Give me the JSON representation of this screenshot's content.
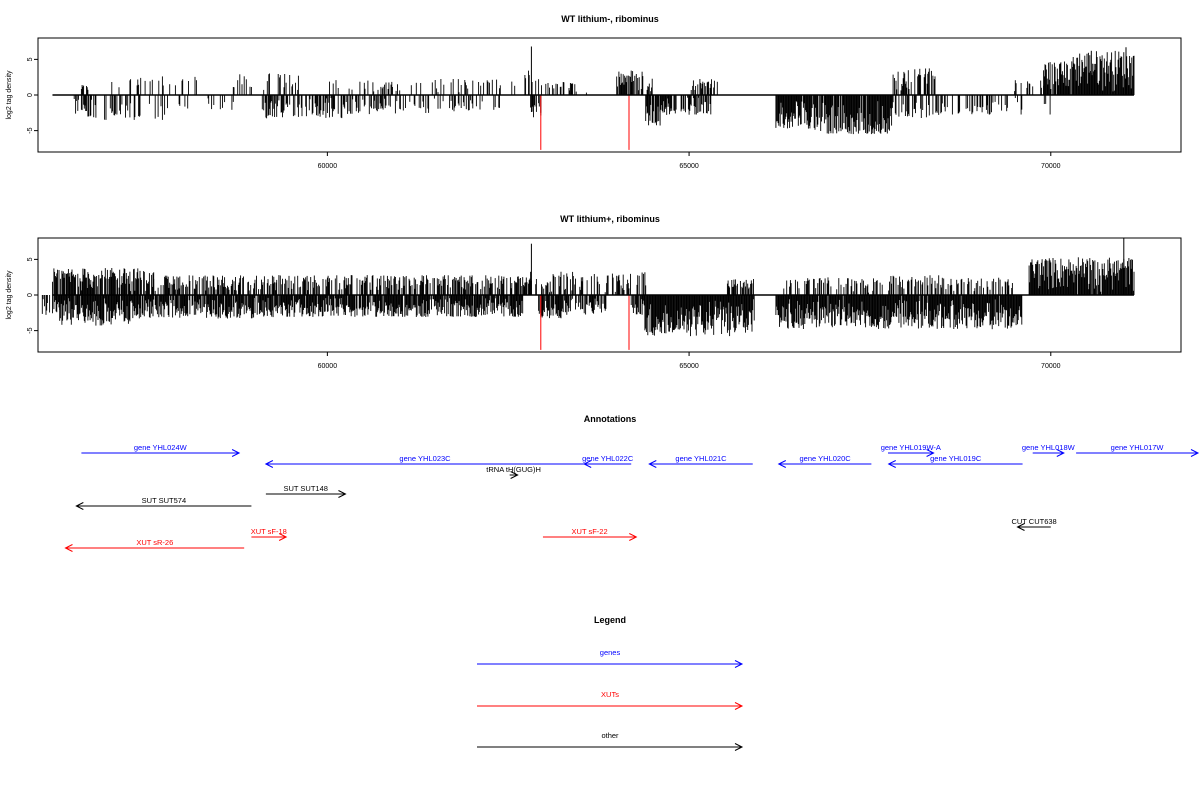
{
  "colors": {
    "gene": "#0000ff",
    "xut": "#ff0000",
    "other": "#000000",
    "tick_marker": "#ff0000"
  },
  "chart_data": [
    {
      "type": "bar",
      "title": "WT lithium-, ribominus",
      "ylabel": "log2 tag density",
      "xlim": [
        56000,
        71800
      ],
      "ylim": [
        -8,
        8
      ],
      "x_ticks": [
        60000,
        65000,
        70000
      ],
      "y_ticks": [
        5,
        0,
        -5
      ],
      "markers_x": [
        62950,
        64170
      ],
      "positive_regions": [
        [
          56600,
          56700,
          0.7,
          1.1
        ],
        [
          57000,
          58200,
          0.22,
          2.4
        ],
        [
          58700,
          59600,
          0.3,
          2.8
        ],
        [
          60000,
          61000,
          0.25,
          1.8
        ],
        [
          61100,
          62600,
          0.22,
          2.0
        ],
        [
          62700,
          62980,
          0.6,
          3.2
        ],
        [
          63000,
          63600,
          0.4,
          1.6
        ],
        [
          64000,
          64500,
          0.6,
          3.3
        ],
        [
          65000,
          65400,
          0.45,
          2.0
        ],
        [
          67800,
          68400,
          0.6,
          3.5
        ],
        [
          69500,
          69900,
          0.4,
          1.8
        ],
        [
          69900,
          70300,
          0.8,
          4.5
        ],
        [
          70300,
          71150,
          0.97,
          6.0
        ]
      ],
      "negative_regions": [
        [
          56500,
          56800,
          0.55,
          3.0
        ],
        [
          56900,
          57800,
          0.35,
          3.2
        ],
        [
          57900,
          58700,
          0.25,
          2.0
        ],
        [
          59100,
          60200,
          0.55,
          3.0
        ],
        [
          60200,
          61400,
          0.5,
          2.4
        ],
        [
          61400,
          62400,
          0.3,
          2.0
        ],
        [
          62800,
          62950,
          0.5,
          3.0
        ],
        [
          64400,
          64600,
          0.85,
          4.0
        ],
        [
          64600,
          65300,
          0.7,
          2.5
        ],
        [
          66200,
          66700,
          0.97,
          4.5
        ],
        [
          66700,
          67800,
          0.9,
          5.2
        ],
        [
          67800,
          68600,
          0.45,
          3.0
        ],
        [
          68600,
          69600,
          0.35,
          2.5
        ],
        [
          69900,
          70000,
          0.4,
          2.5
        ]
      ],
      "spikes": [
        [
          62820,
          6.8
        ],
        [
          70560,
          6.2
        ],
        [
          71040,
          6.7
        ],
        [
          62950,
          -2.5
        ],
        [
          64170,
          -2.5
        ]
      ]
    },
    {
      "type": "bar",
      "title": "WT lithium+, ribominus",
      "ylabel": "log2 tag density",
      "xlim": [
        56000,
        71800
      ],
      "ylim": [
        -8,
        8
      ],
      "x_ticks": [
        60000,
        65000,
        70000
      ],
      "y_ticks": [
        5,
        0,
        -5
      ],
      "markers_x": [
        62950,
        64170
      ],
      "positive_regions": [
        [
          56200,
          57600,
          0.75,
          3.5
        ],
        [
          57600,
          59000,
          0.6,
          2.5
        ],
        [
          59000,
          62800,
          0.55,
          2.5
        ],
        [
          62800,
          64400,
          0.5,
          3.0
        ],
        [
          65500,
          65900,
          0.5,
          2.0
        ],
        [
          66300,
          67200,
          0.35,
          2.2
        ],
        [
          67200,
          68500,
          0.4,
          2.5
        ],
        [
          68500,
          69500,
          0.45,
          2.2
        ],
        [
          69700,
          71150,
          0.97,
          5.0
        ]
      ],
      "negative_regions": [
        [
          56050,
          56300,
          0.6,
          2.5
        ],
        [
          56300,
          57300,
          0.97,
          4.0
        ],
        [
          57300,
          59000,
          0.9,
          3.0
        ],
        [
          59000,
          62700,
          0.9,
          2.8
        ],
        [
          62900,
          63300,
          0.8,
          3.0
        ],
        [
          63300,
          63850,
          0.6,
          2.5
        ],
        [
          64200,
          64350,
          0.8,
          2.5
        ],
        [
          64350,
          65900,
          0.99,
          5.5
        ],
        [
          66200,
          69600,
          0.97,
          4.5
        ]
      ],
      "spikes": [
        [
          62820,
          7.2
        ],
        [
          71010,
          8.0
        ],
        [
          62950,
          -2.5
        ],
        [
          64170,
          -2.5
        ]
      ]
    }
  ],
  "annotations": {
    "title": "Annotations",
    "features": [
      {
        "label": "gene YHL024W",
        "type": "gene",
        "start": 56600,
        "end": 58780,
        "row": 0,
        "strand": "+"
      },
      {
        "label": "gene YHL023C",
        "type": "gene",
        "start": 59150,
        "end": 63550,
        "row": 1,
        "strand": "-"
      },
      {
        "label": "gene YHL022C",
        "type": "gene",
        "start": 63550,
        "end": 64200,
        "row": 1,
        "strand": "-"
      },
      {
        "label": "gene YHL021C",
        "type": "gene",
        "start": 64450,
        "end": 65880,
        "row": 1,
        "strand": "-"
      },
      {
        "label": "gene YHL020C",
        "type": "gene",
        "start": 66240,
        "end": 67520,
        "row": 1,
        "strand": "-"
      },
      {
        "label": "gene YHL019W-A",
        "type": "gene",
        "start": 67750,
        "end": 68380,
        "row": 0,
        "strand": "+"
      },
      {
        "label": "gene YHL019C",
        "type": "gene",
        "start": 67760,
        "end": 69610,
        "row": 1,
        "strand": "-"
      },
      {
        "label": "gene YHL018W",
        "type": "gene",
        "start": 69750,
        "end": 70180,
        "row": 0,
        "strand": "+"
      },
      {
        "label": "gene YHL017W",
        "type": "gene",
        "start": 70350,
        "end": 72500,
        "row": 0,
        "strand": "+"
      },
      {
        "label": "tRNA tH(GUG)H",
        "type": "other",
        "start": 62520,
        "end": 62630,
        "row": 2,
        "strand": "+"
      },
      {
        "label": "SUT SUT148",
        "type": "other",
        "start": 59150,
        "end": 60250,
        "row": 3,
        "strand": "+"
      },
      {
        "label": "SUT SUT574",
        "type": "other",
        "start": 56530,
        "end": 58950,
        "row": 4,
        "strand": "-"
      },
      {
        "label": "XUT sF-18",
        "type": "xut",
        "start": 58950,
        "end": 59430,
        "row": 6,
        "strand": "+"
      },
      {
        "label": "XUT sF-22",
        "type": "xut",
        "start": 62980,
        "end": 64270,
        "row": 6,
        "strand": "+"
      },
      {
        "label": "XUT sR-26",
        "type": "xut",
        "start": 56380,
        "end": 58850,
        "row": 7,
        "strand": "-"
      },
      {
        "label": "CUT CUT638",
        "type": "other",
        "start": 69540,
        "end": 70000,
        "row": 5,
        "strand": "-"
      }
    ]
  },
  "legend": {
    "title": "Legend",
    "items": [
      {
        "label": "genes",
        "type": "gene"
      },
      {
        "label": "XUTs",
        "type": "xut"
      },
      {
        "label": "other",
        "type": "other"
      }
    ]
  }
}
